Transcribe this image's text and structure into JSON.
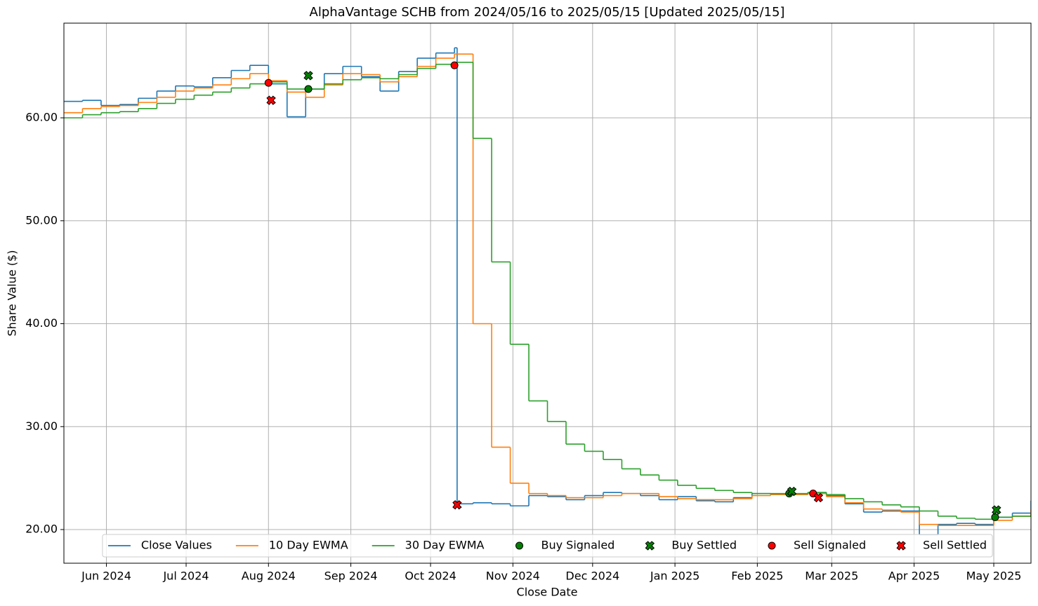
{
  "chart_data": {
    "type": "step",
    "title": "AlphaVantage SCHB from 2024/05/16 to 2025/05/15 [Updated 2025/05/15]",
    "x_label": "Close Date",
    "y_label": "Share Value ($)",
    "xlim": [
      0,
      364
    ],
    "ylim": [
      16.73,
      69.2
    ],
    "xticks": [
      {
        "value": 16,
        "label": "Jun 2024"
      },
      {
        "value": 46,
        "label": "Jul 2024"
      },
      {
        "value": 77,
        "label": "Aug 2024"
      },
      {
        "value": 108,
        "label": "Sep 2024"
      },
      {
        "value": 138,
        "label": "Oct 2024"
      },
      {
        "value": 169,
        "label": "Nov 2024"
      },
      {
        "value": 199,
        "label": "Dec 2024"
      },
      {
        "value": 230,
        "label": "Jan 2025"
      },
      {
        "value": 261,
        "label": "Feb 2025"
      },
      {
        "value": 289,
        "label": "Mar 2025"
      },
      {
        "value": 320,
        "label": "Apr 2025"
      },
      {
        "value": 350,
        "label": "May 2025"
      }
    ],
    "yticks": [
      {
        "value": 20,
        "label": "20.00"
      },
      {
        "value": 30,
        "label": "30.00"
      },
      {
        "value": 40,
        "label": "40.00"
      },
      {
        "value": 50,
        "label": "50.00"
      },
      {
        "value": 60,
        "label": "60.00"
      }
    ],
    "grid": true,
    "legend": "lower center",
    "series": [
      {
        "name": "Close Values",
        "color": "#1f77b4",
        "style": "step",
        "x": [
          0,
          7,
          14,
          21,
          28,
          35,
          42,
          49,
          56,
          63,
          70,
          77,
          84,
          91,
          98,
          105,
          112,
          119,
          126,
          133,
          140,
          147,
          148,
          154,
          161,
          168,
          175,
          182,
          189,
          196,
          203,
          210,
          217,
          224,
          231,
          238,
          245,
          252,
          259,
          266,
          273,
          280,
          287,
          294,
          301,
          308,
          315,
          322,
          329,
          336,
          343,
          350,
          357,
          364
        ],
        "values": [
          61.6,
          61.7,
          61.2,
          61.3,
          61.9,
          62.6,
          63.1,
          63.0,
          63.9,
          64.6,
          65.1,
          63.3,
          60.1,
          62.8,
          64.3,
          65.0,
          64.0,
          62.6,
          64.5,
          65.8,
          66.3,
          66.8,
          22.5,
          22.6,
          22.5,
          22.3,
          23.3,
          23.2,
          22.9,
          23.3,
          23.6,
          23.5,
          23.3,
          22.9,
          23.2,
          22.8,
          22.7,
          23.1,
          23.5,
          23.4,
          23.4,
          23.6,
          23.3,
          22.5,
          21.7,
          21.8,
          21.8,
          19.5,
          20.5,
          20.6,
          20.5,
          21.2,
          21.6,
          22.8
        ]
      },
      {
        "name": "10 Day EWMA",
        "color": "#ff7f0e",
        "style": "step",
        "x": [
          0,
          7,
          14,
          21,
          28,
          35,
          42,
          49,
          56,
          63,
          70,
          77,
          84,
          91,
          98,
          105,
          112,
          119,
          126,
          133,
          140,
          147,
          148,
          154,
          161,
          168,
          175,
          182,
          189,
          196,
          203,
          210,
          217,
          224,
          231,
          238,
          245,
          252,
          259,
          266,
          273,
          280,
          287,
          294,
          301,
          308,
          315,
          322,
          329,
          336,
          343,
          350,
          357,
          364
        ],
        "values": [
          60.5,
          60.9,
          61.1,
          61.2,
          61.5,
          62.0,
          62.6,
          62.9,
          63.2,
          63.8,
          64.3,
          63.6,
          62.5,
          62.0,
          63.2,
          64.3,
          64.2,
          63.5,
          64.0,
          65.0,
          65.8,
          66.2,
          66.2,
          40.0,
          28.0,
          24.5,
          23.5,
          23.3,
          23.1,
          23.1,
          23.3,
          23.5,
          23.5,
          23.2,
          23.0,
          22.9,
          22.9,
          23.0,
          23.3,
          23.4,
          23.4,
          23.5,
          23.2,
          22.6,
          22.0,
          21.9,
          21.7,
          20.5,
          20.4,
          20.4,
          20.4,
          20.9,
          21.3,
          22.0
        ]
      },
      {
        "name": "30 Day EWMA",
        "color": "#2ca02c",
        "style": "step",
        "x": [
          0,
          7,
          14,
          21,
          28,
          35,
          42,
          49,
          56,
          63,
          70,
          77,
          84,
          91,
          98,
          105,
          112,
          119,
          126,
          133,
          140,
          147,
          148,
          154,
          161,
          168,
          175,
          182,
          189,
          196,
          203,
          210,
          217,
          224,
          231,
          238,
          245,
          252,
          259,
          266,
          273,
          280,
          287,
          294,
          301,
          308,
          315,
          322,
          329,
          336,
          343,
          350,
          357,
          364
        ],
        "values": [
          60.0,
          60.3,
          60.5,
          60.6,
          60.9,
          61.4,
          61.8,
          62.2,
          62.5,
          62.9,
          63.3,
          63.5,
          62.8,
          62.8,
          63.3,
          63.7,
          63.9,
          63.8,
          64.2,
          64.8,
          65.2,
          65.4,
          65.4,
          58.0,
          46.0,
          38.0,
          32.5,
          30.5,
          28.3,
          27.6,
          26.8,
          25.9,
          25.3,
          24.8,
          24.3,
          24.0,
          23.8,
          23.6,
          23.5,
          23.5,
          23.5,
          23.6,
          23.4,
          23.0,
          22.7,
          22.4,
          22.2,
          21.8,
          21.3,
          21.1,
          21.0,
          21.2,
          21.3,
          21.6
        ]
      },
      {
        "name": "Buy Signaled",
        "color": "#008000",
        "style": "circle",
        "x": [
          92,
          273,
          350.5
        ],
        "values": [
          62.8,
          23.5,
          21.2
        ]
      },
      {
        "name": "Buy Settled",
        "color": "#008000",
        "style": "cross",
        "x": [
          92,
          274,
          351
        ],
        "values": [
          64.1,
          23.7,
          21.9
        ]
      },
      {
        "name": "Sell Signaled",
        "color": "#ff0000",
        "style": "circle",
        "x": [
          77,
          147,
          282
        ],
        "values": [
          63.4,
          65.1,
          23.5
        ]
      },
      {
        "name": "Sell Settled",
        "color": "#ff0000",
        "style": "cross",
        "x": [
          78,
          148,
          284
        ],
        "values": [
          61.7,
          22.4,
          23.1
        ]
      }
    ]
  }
}
